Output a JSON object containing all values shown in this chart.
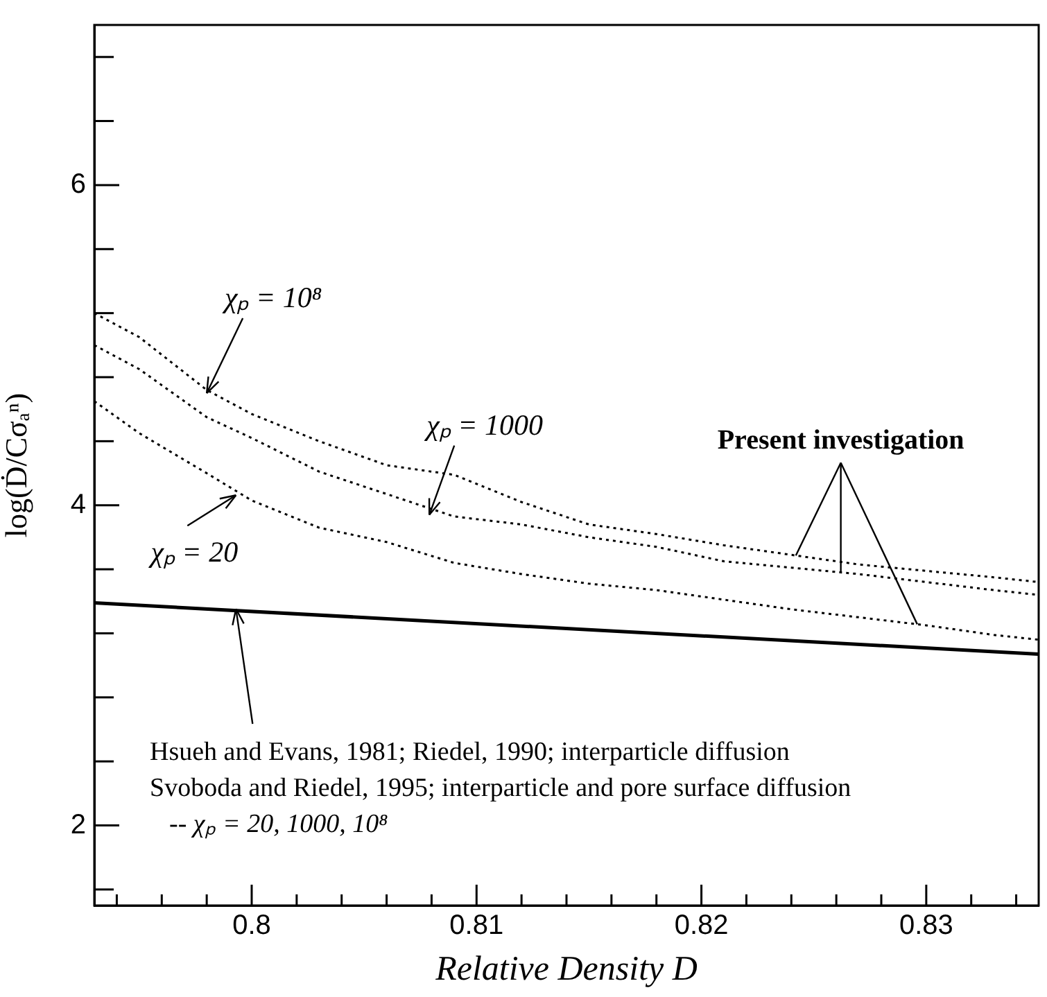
{
  "chart_data": {
    "type": "line",
    "xlabel": "Relative Density D",
    "ylabel": "log(Ḋ/Cσₐⁿ)",
    "xlim": [
      0.793,
      0.835
    ],
    "ylim": [
      1.5,
      7
    ],
    "xticks": [
      {
        "value": 0.794,
        "label": null
      },
      {
        "value": 0.796,
        "label": null
      },
      {
        "value": 0.798,
        "label": null
      },
      0.8,
      {
        "value": 0.802,
        "label": null
      },
      {
        "value": 0.804,
        "label": null
      },
      {
        "value": 0.806,
        "label": null
      },
      {
        "value": 0.808,
        "label": null
      },
      0.81,
      {
        "value": 0.812,
        "label": null
      },
      {
        "value": 0.814,
        "label": null
      },
      {
        "value": 0.816,
        "label": null
      },
      {
        "value": 0.818,
        "label": null
      },
      0.82,
      {
        "value": 0.822,
        "label": null
      },
      {
        "value": 0.824,
        "label": null
      },
      {
        "value": 0.826,
        "label": null
      },
      {
        "value": 0.828,
        "label": null
      },
      0.83,
      {
        "value": 0.832,
        "label": null
      },
      {
        "value": 0.834,
        "label": null
      }
    ],
    "yticks": [
      {
        "value": 1.6,
        "label": null
      },
      2,
      {
        "value": 2.4,
        "label": null
      },
      {
        "value": 2.8,
        "label": null
      },
      {
        "value": 3.2,
        "label": null
      },
      {
        "value": 3.6,
        "label": null
      },
      4,
      {
        "value": 4.4,
        "label": null
      },
      {
        "value": 4.8,
        "label": null
      },
      {
        "value": 5.2,
        "label": null
      },
      {
        "value": 5.6,
        "label": null
      },
      6,
      {
        "value": 6.4,
        "label": null
      },
      {
        "value": 6.8,
        "label": null
      }
    ],
    "x": [
      0.793,
      0.795,
      0.798,
      0.8,
      0.803,
      0.806,
      0.809,
      0.812,
      0.815,
      0.818,
      0.821,
      0.824,
      0.827,
      0.83,
      0.833,
      0.835
    ],
    "series": [
      {
        "color": "#000000",
        "line_style": "dotted",
        "values": [
          5.2,
          5.05,
          4.72,
          4.57,
          4.4,
          4.25,
          4.19,
          4.02,
          3.88,
          3.82,
          3.75,
          3.69,
          3.63,
          3.59,
          3.55,
          3.52
        ]
      },
      {
        "color": "#000000",
        "line_style": "dotted",
        "values": [
          5.0,
          4.85,
          4.55,
          4.42,
          4.21,
          4.07,
          3.93,
          3.88,
          3.8,
          3.74,
          3.65,
          3.61,
          3.57,
          3.52,
          3.47,
          3.44
        ]
      },
      {
        "color": "#000000",
        "line_style": "dotted",
        "values": [
          4.65,
          4.45,
          4.2,
          4.03,
          3.86,
          3.77,
          3.64,
          3.57,
          3.51,
          3.47,
          3.41,
          3.35,
          3.3,
          3.25,
          3.19,
          3.16
        ]
      },
      {
        "color": "#000000",
        "line_style": "solid",
        "x": [
          0.793,
          0.835
        ],
        "values": [
          3.39,
          3.07
        ]
      }
    ],
    "marker": "none",
    "legend": false,
    "annotations": [
      {
        "text": "χₚ = 10⁸",
        "x": 0.798,
        "y": 4.7
      },
      {
        "text": "χₚ = 1000",
        "x": 0.8079,
        "y": 3.94
      },
      {
        "text": "χₚ = 20",
        "x": 0.7993,
        "y": 4.08
      },
      {
        "text": "Present investigation",
        "x": 0.8262,
        "y": 3.59
      },
      {
        "text": "Hsueh and Evans, 1981; Riedel, 1990; interparticle diffusion",
        "x": 0.7993,
        "y": 3.37
      },
      "Svoboda and Riedel, 1995; interparticle and pore surface diffusion",
      "-- χₚ = 20, 1000, 10⁸"
    ]
  }
}
